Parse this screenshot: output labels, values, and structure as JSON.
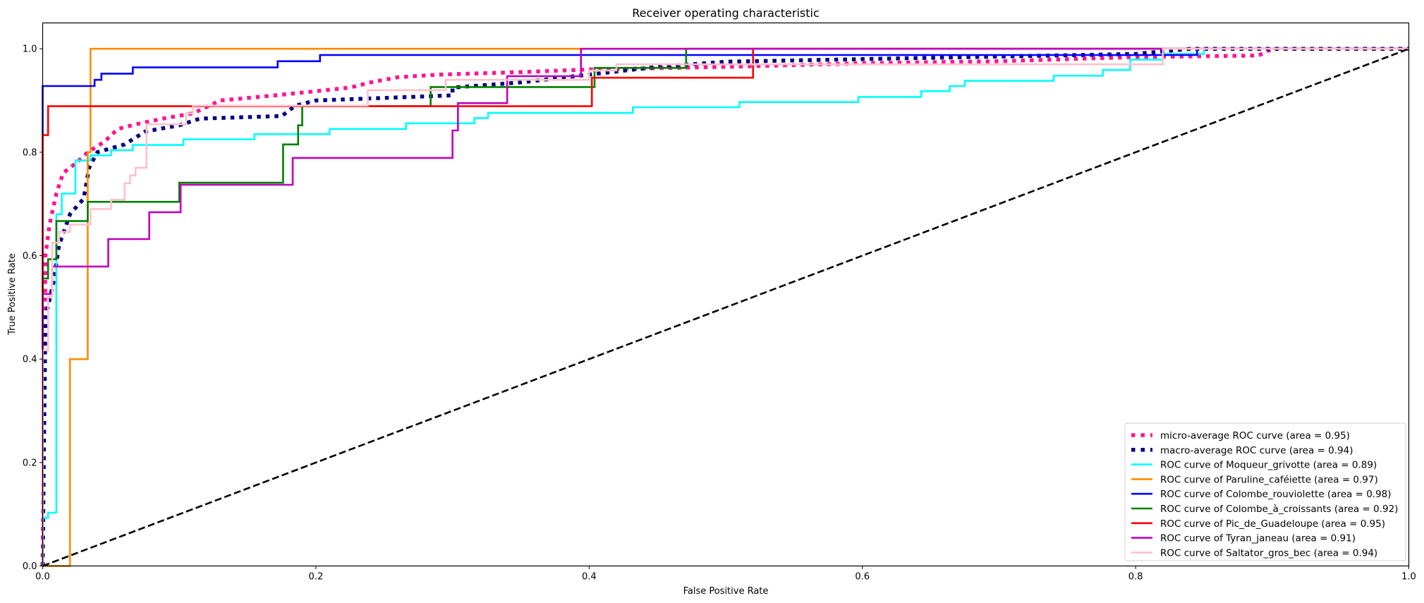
{
  "chart_data": {
    "type": "line",
    "title": "Receiver operating characteristic",
    "xlabel": "False Positive Rate",
    "ylabel": "True Positive Rate",
    "xlim": [
      0.0,
      1.0
    ],
    "ylim": [
      0.0,
      1.05
    ],
    "xticks": [
      "0.0",
      "0.2",
      "0.4",
      "0.6",
      "0.8",
      "1.0"
    ],
    "yticks": [
      "0.0",
      "0.2",
      "0.4",
      "0.6",
      "0.8",
      "1.0"
    ],
    "grid": false,
    "legend_position": "lower right",
    "series": [
      {
        "name": "micro-average ROC curve (area = 0.95)",
        "color": "#ff1493",
        "style": "dotted",
        "points": [
          [
            0,
            0
          ],
          [
            0.002,
            0.6
          ],
          [
            0.005,
            0.66
          ],
          [
            0.01,
            0.72
          ],
          [
            0.015,
            0.76
          ],
          [
            0.025,
            0.78
          ],
          [
            0.033,
            0.8
          ],
          [
            0.045,
            0.82
          ],
          [
            0.055,
            0.845
          ],
          [
            0.07,
            0.855
          ],
          [
            0.09,
            0.866
          ],
          [
            0.11,
            0.875
          ],
          [
            0.13,
            0.9
          ],
          [
            0.17,
            0.91
          ],
          [
            0.2,
            0.918
          ],
          [
            0.225,
            0.925
          ],
          [
            0.24,
            0.935
          ],
          [
            0.26,
            0.945
          ],
          [
            0.29,
            0.95
          ],
          [
            0.35,
            0.955
          ],
          [
            0.4,
            0.96
          ],
          [
            0.5,
            0.965
          ],
          [
            0.6,
            0.972
          ],
          [
            0.7,
            0.976
          ],
          [
            0.8,
            0.984
          ],
          [
            0.89,
            0.987
          ],
          [
            0.9,
            1.0
          ],
          [
            1,
            1
          ]
        ]
      },
      {
        "name": "macro-average ROC curve (area = 0.94)",
        "color": "#000080",
        "style": "dotted",
        "points": [
          [
            0,
            0
          ],
          [
            0.002,
            0.48
          ],
          [
            0.008,
            0.55
          ],
          [
            0.012,
            0.62
          ],
          [
            0.02,
            0.68
          ],
          [
            0.03,
            0.71
          ],
          [
            0.034,
            0.77
          ],
          [
            0.04,
            0.8
          ],
          [
            0.06,
            0.815
          ],
          [
            0.075,
            0.84
          ],
          [
            0.1,
            0.852
          ],
          [
            0.115,
            0.865
          ],
          [
            0.175,
            0.87
          ],
          [
            0.185,
            0.89
          ],
          [
            0.2,
            0.9
          ],
          [
            0.3,
            0.91
          ],
          [
            0.3,
            0.925
          ],
          [
            0.35,
            0.935
          ],
          [
            0.4,
            0.95
          ],
          [
            0.45,
            0.965
          ],
          [
            0.5,
            0.975
          ],
          [
            0.6,
            0.98
          ],
          [
            0.8,
            0.99
          ],
          [
            0.84,
            1.0
          ],
          [
            1,
            1
          ]
        ]
      },
      {
        "name": "ROC curve of Moqueur_grivotte (area = 0.89)",
        "color": "#00ffff",
        "style": "solid",
        "points": [
          [
            0,
            0
          ],
          [
            0,
            0.093
          ],
          [
            0.004,
            0.093
          ],
          [
            0.004,
            0.103
          ],
          [
            0.01,
            0.103
          ],
          [
            0.01,
            0.68
          ],
          [
            0.014,
            0.68
          ],
          [
            0.014,
            0.72
          ],
          [
            0.024,
            0.72
          ],
          [
            0.024,
            0.784
          ],
          [
            0.035,
            0.784
          ],
          [
            0.035,
            0.794
          ],
          [
            0.05,
            0.794
          ],
          [
            0.05,
            0.804
          ],
          [
            0.066,
            0.804
          ],
          [
            0.066,
            0.814
          ],
          [
            0.103,
            0.814
          ],
          [
            0.103,
            0.825
          ],
          [
            0.155,
            0.825
          ],
          [
            0.155,
            0.835
          ],
          [
            0.21,
            0.835
          ],
          [
            0.21,
            0.845
          ],
          [
            0.266,
            0.845
          ],
          [
            0.266,
            0.856
          ],
          [
            0.316,
            0.856
          ],
          [
            0.316,
            0.866
          ],
          [
            0.326,
            0.866
          ],
          [
            0.326,
            0.876
          ],
          [
            0.432,
            0.876
          ],
          [
            0.432,
            0.887
          ],
          [
            0.51,
            0.887
          ],
          [
            0.51,
            0.897
          ],
          [
            0.597,
            0.897
          ],
          [
            0.597,
            0.907
          ],
          [
            0.643,
            0.907
          ],
          [
            0.643,
            0.918
          ],
          [
            0.664,
            0.918
          ],
          [
            0.664,
            0.928
          ],
          [
            0.675,
            0.928
          ],
          [
            0.675,
            0.938
          ],
          [
            0.74,
            0.938
          ],
          [
            0.74,
            0.948
          ],
          [
            0.776,
            0.948
          ],
          [
            0.776,
            0.959
          ],
          [
            0.796,
            0.959
          ],
          [
            0.796,
            0.979
          ],
          [
            0.82,
            0.979
          ],
          [
            0.82,
            0.99
          ],
          [
            0.85,
            0.99
          ],
          [
            0.85,
            1.0
          ],
          [
            1,
            1
          ]
        ]
      },
      {
        "name": "ROC curve of Paruline_caféiette (area = 0.97)",
        "color": "#ff8c00",
        "style": "solid",
        "points": [
          [
            0,
            0
          ],
          [
            0.02,
            0
          ],
          [
            0.02,
            0.4
          ],
          [
            0.033,
            0.4
          ],
          [
            0.033,
            0.8
          ],
          [
            0.035,
            0.8
          ],
          [
            0.035,
            1.0
          ],
          [
            1,
            1
          ]
        ]
      },
      {
        "name": "ROC curve of Colombe_rouviolette (area = 0.98)",
        "color": "#0000ff",
        "style": "solid",
        "points": [
          [
            0,
            0
          ],
          [
            0,
            0.928
          ],
          [
            0.038,
            0.928
          ],
          [
            0.038,
            0.94
          ],
          [
            0.043,
            0.94
          ],
          [
            0.043,
            0.952
          ],
          [
            0.066,
            0.952
          ],
          [
            0.066,
            0.964
          ],
          [
            0.172,
            0.964
          ],
          [
            0.172,
            0.976
          ],
          [
            0.203,
            0.976
          ],
          [
            0.203,
            0.988
          ],
          [
            0.845,
            0.988
          ],
          [
            0.845,
            1.0
          ],
          [
            1,
            1
          ]
        ]
      },
      {
        "name": "ROC curve of Colombe_à_croissants (area = 0.92)",
        "color": "#008000",
        "style": "solid",
        "points": [
          [
            0,
            0
          ],
          [
            0,
            0.556
          ],
          [
            0.004,
            0.556
          ],
          [
            0.004,
            0.593
          ],
          [
            0.01,
            0.593
          ],
          [
            0.01,
            0.667
          ],
          [
            0.033,
            0.667
          ],
          [
            0.033,
            0.704
          ],
          [
            0.1,
            0.704
          ],
          [
            0.1,
            0.741
          ],
          [
            0.176,
            0.741
          ],
          [
            0.176,
            0.815
          ],
          [
            0.187,
            0.815
          ],
          [
            0.187,
            0.852
          ],
          [
            0.19,
            0.852
          ],
          [
            0.19,
            0.889
          ],
          [
            0.284,
            0.889
          ],
          [
            0.284,
            0.926
          ],
          [
            0.404,
            0.926
          ],
          [
            0.404,
            0.963
          ],
          [
            0.471,
            0.963
          ],
          [
            0.471,
            1.0
          ],
          [
            1,
            1
          ]
        ]
      },
      {
        "name": "ROC curve of Pic_de_Guadeloupe (area = 0.95)",
        "color": "#ff0000",
        "style": "solid",
        "points": [
          [
            0,
            0
          ],
          [
            0,
            0.833
          ],
          [
            0.004,
            0.833
          ],
          [
            0.004,
            0.889
          ],
          [
            0.402,
            0.889
          ],
          [
            0.402,
            0.944
          ],
          [
            0.52,
            0.944
          ],
          [
            0.52,
            1.0
          ],
          [
            1,
            1
          ]
        ]
      },
      {
        "name": "ROC curve of Tyran_janeau (area = 0.91)",
        "color": "#c000c0",
        "style": "solid",
        "points": [
          [
            0,
            0
          ],
          [
            0,
            0.526
          ],
          [
            0.007,
            0.526
          ],
          [
            0.007,
            0.579
          ],
          [
            0.048,
            0.579
          ],
          [
            0.048,
            0.632
          ],
          [
            0.078,
            0.632
          ],
          [
            0.078,
            0.684
          ],
          [
            0.101,
            0.684
          ],
          [
            0.101,
            0.737
          ],
          [
            0.183,
            0.737
          ],
          [
            0.183,
            0.789
          ],
          [
            0.3,
            0.789
          ],
          [
            0.3,
            0.842
          ],
          [
            0.304,
            0.842
          ],
          [
            0.304,
            0.895
          ],
          [
            0.34,
            0.895
          ],
          [
            0.34,
            0.947
          ],
          [
            0.394,
            0.947
          ],
          [
            0.394,
            1.0
          ],
          [
            1,
            1
          ]
        ]
      },
      {
        "name": "ROC curve of Saltator_gros_bec (area = 0.94)",
        "color": "#ffc0cb",
        "style": "solid",
        "points": [
          [
            0,
            0
          ],
          [
            0,
            0.417
          ],
          [
            0.004,
            0.417
          ],
          [
            0.004,
            0.521
          ],
          [
            0.007,
            0.521
          ],
          [
            0.007,
            0.625
          ],
          [
            0.012,
            0.625
          ],
          [
            0.012,
            0.646
          ],
          [
            0.02,
            0.646
          ],
          [
            0.02,
            0.66
          ],
          [
            0.035,
            0.66
          ],
          [
            0.035,
            0.69
          ],
          [
            0.05,
            0.69
          ],
          [
            0.05,
            0.708
          ],
          [
            0.06,
            0.708
          ],
          [
            0.06,
            0.74
          ],
          [
            0.064,
            0.74
          ],
          [
            0.064,
            0.755
          ],
          [
            0.068,
            0.755
          ],
          [
            0.068,
            0.77
          ],
          [
            0.076,
            0.77
          ],
          [
            0.076,
            0.854
          ],
          [
            0.105,
            0.854
          ],
          [
            0.105,
            0.875
          ],
          [
            0.11,
            0.875
          ],
          [
            0.11,
            0.89
          ],
          [
            0.238,
            0.89
          ],
          [
            0.238,
            0.92
          ],
          [
            0.295,
            0.92
          ],
          [
            0.295,
            0.94
          ],
          [
            0.4,
            0.94
          ],
          [
            0.4,
            0.958
          ],
          [
            0.42,
            0.958
          ],
          [
            0.42,
            0.97
          ],
          [
            0.82,
            0.97
          ],
          [
            0.82,
            1.0
          ],
          [
            1,
            1
          ]
        ]
      }
    ],
    "reference_line": {
      "points": [
        [
          0,
          0
        ],
        [
          1,
          1
        ]
      ],
      "color": "#000000",
      "style": "dashed"
    }
  }
}
